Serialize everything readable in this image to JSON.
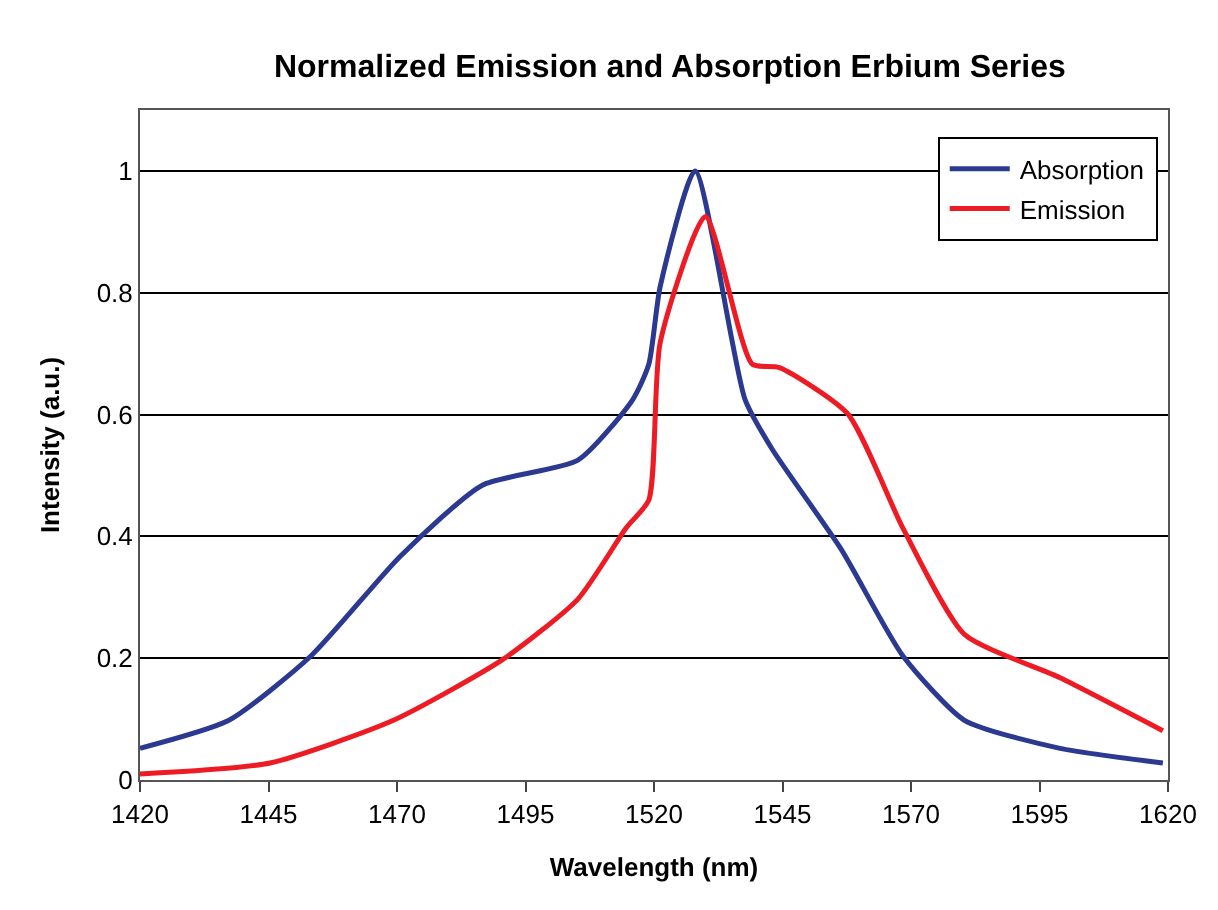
{
  "chart_data": {
    "type": "line",
    "title": "Normalized Emission and Absorption Erbium Series",
    "xlabel": "Wavelength (nm)",
    "ylabel": "Intensity (a.u.)",
    "xlim": [
      1420,
      1620
    ],
    "xticks": [
      1420,
      1445,
      1470,
      1495,
      1520,
      1545,
      1570,
      1595,
      1620
    ],
    "ylim": [
      0,
      1.1
    ],
    "yticks": [
      0,
      0.2,
      0.4,
      0.6,
      0.8,
      1
    ],
    "grid": "y",
    "legend": "top right",
    "series": [
      {
        "name": "Absorption",
        "color": "#2b3990",
        "x": [
          1420,
          1437.3,
          1453.3,
          1470.6,
          1486.6,
          1505.2,
          1515.9,
          1519,
          1521.2,
          1528,
          1537.7,
          1543,
          1556.4,
          1568.4,
          1580.4,
          1599,
          1619
        ],
        "values": [
          0.052,
          0.098,
          0.204,
          0.367,
          0.484,
          0.525,
          0.625,
          0.683,
          0.81,
          1.0,
          0.625,
          0.543,
          0.379,
          0.204,
          0.098,
          0.052,
          0.028
        ]
      },
      {
        "name": "Emission",
        "color": "#ed1c24",
        "x": [
          1420,
          1445.3,
          1469.3,
          1490.6,
          1505.2,
          1514.6,
          1519,
          1521.2,
          1530,
          1539.1,
          1544.4,
          1557.7,
          1568.4,
          1580.4,
          1599,
          1619
        ],
        "values": [
          0.01,
          0.028,
          0.098,
          0.198,
          0.297,
          0.414,
          0.46,
          0.718,
          0.925,
          0.683,
          0.677,
          0.601,
          0.414,
          0.239,
          0.168,
          0.081
        ]
      }
    ]
  }
}
